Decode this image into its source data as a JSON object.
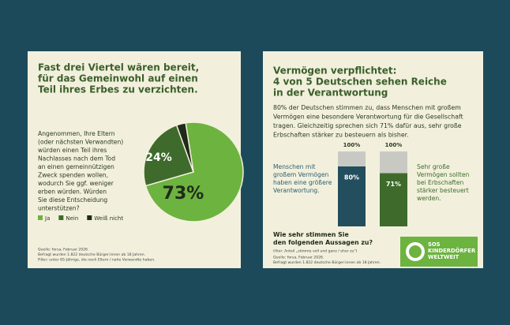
{
  "chart_data": [
    {
      "type": "pie",
      "title": [
        "Fast drei Viertel wären bereit,",
        "für das Gemeinwohl auf einen",
        "Teil ihres Erbes zu verzichten."
      ],
      "question": [
        "Angenommen, Ihre Eltern",
        "(oder nächsten Verwandten)",
        "würden einen Teil ihres",
        "Nachlasses nach dem Tod",
        "an einen gemeinnützigen",
        "Zweck spenden wollen,",
        "wodurch Sie ggf. weniger",
        "erben würden. Würden",
        "Sie diese Entscheidung",
        "unterstützen?"
      ],
      "categories": [
        "Ja",
        "Nein",
        "Weiß nicht"
      ],
      "values": [
        73,
        24,
        3
      ],
      "value_labels": [
        "73%",
        "24%",
        null
      ],
      "colors": [
        "#6cb33f",
        "#3e6b2b",
        "#1f2a1a"
      ],
      "source": [
        "Quelle: forsa, Februar 2026.",
        "Befragt wurden 1.822 deutsche Bürger:innen ab 18 Jahren.",
        "Filter: unter 65-Jährige, die noch Eltern / nahe Verwandte haben."
      ]
    },
    {
      "type": "bar",
      "title": [
        "Vermögen verpflichtet:",
        "4 von 5 Deutschen sehen Reiche",
        "in der Verantwortung"
      ],
      "text": [
        "80% der Deutschen stimmen zu, dass Menschen mit großem",
        "Vermögen eine besondere Verantwortung für die Gesellschaft",
        "tragen. Gleichzeitig sprechen sich 71% dafür aus, sehr große",
        "Erbschaften stärker zu besteuern als bisher."
      ],
      "notes": [
        [
          "Menschen mit",
          "großem Vermögen",
          "haben eine größere",
          "Verantwortung."
        ],
        [
          "Sehr große",
          "Vermögen sollten",
          "bei Erbschaften",
          "stärker besteuert",
          "werden."
        ]
      ],
      "values": [
        80,
        71
      ],
      "value_labels": [
        "80%",
        "71%"
      ],
      "totals": [
        100,
        100
      ],
      "total_labels": [
        "100%",
        "100%"
      ],
      "colors": [
        "#234e5e",
        "#3e6b2b"
      ],
      "rest_color": "#c9c9c4",
      "ylim": [
        0,
        100
      ],
      "question": [
        "Wie sehr stimmen Sie",
        "den folgenden Aussagen zu?"
      ],
      "subnote": "(Hier: Anteil „stimme voll und ganz / eher zu\")",
      "source": [
        "Quelle: forsa, Februar 2026.",
        "Befragt wurden 1.822 deutsche Bürger:innen ab 18 Jahren."
      ],
      "logo": [
        "SOS",
        "KINDERDÖRFER",
        "WELTWEIT"
      ]
    }
  ]
}
